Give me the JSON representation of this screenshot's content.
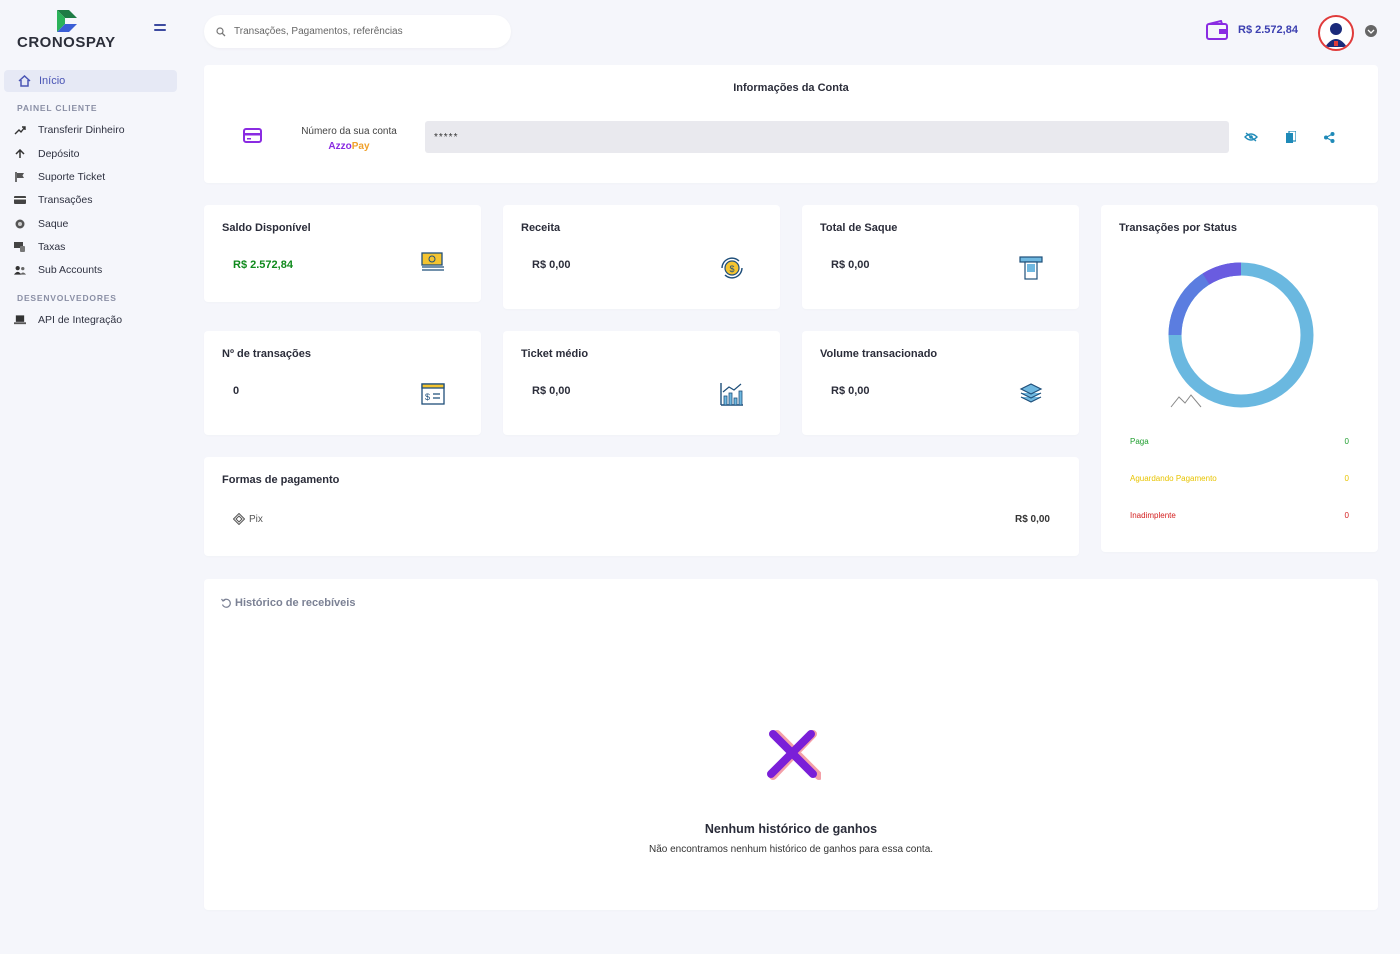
{
  "brand": {
    "name": "CRONOSPAY"
  },
  "sidebar": {
    "home_label": "Início",
    "section_client": "PAINEL CLIENTE",
    "items": [
      {
        "label": "Transferir Dinheiro",
        "icon": "transfer-icon"
      },
      {
        "label": "Depósito",
        "icon": "arrow-up-icon"
      },
      {
        "label": "Suporte Ticket",
        "icon": "flag-icon"
      },
      {
        "label": "Transações",
        "icon": "card-icon"
      },
      {
        "label": "Saque",
        "icon": "coin-icon"
      },
      {
        "label": "Taxas",
        "icon": "devices-icon"
      },
      {
        "label": "Sub Accounts",
        "icon": "users-icon"
      }
    ],
    "section_dev": "DESENVOLVEDORES",
    "dev_items": [
      {
        "label": "API de Integração",
        "icon": "laptop-icon"
      }
    ]
  },
  "header": {
    "search_placeholder": "Transações, Pagamentos, referências",
    "balance": "R$ 2.572,84"
  },
  "account": {
    "title": "Informações da Conta",
    "label": "Número da sua conta",
    "brand_a": "Azzo",
    "brand_b": "Pay",
    "masked_value": "*****"
  },
  "stats": {
    "saldo": {
      "title": "Saldo Disponível",
      "value": "R$ 2.572,84"
    },
    "receita": {
      "title": "Receita",
      "value": "R$ 0,00"
    },
    "saque": {
      "title": "Total de Saque",
      "value": "R$ 0,00"
    },
    "transacoes": {
      "title": "Nº de transações",
      "value": "0"
    },
    "ticket": {
      "title": "Ticket médio",
      "value": "R$ 0,00"
    },
    "volume": {
      "title": "Volume transacionado",
      "value": "R$ 0,00"
    }
  },
  "status_card": {
    "title": "Transações por Status",
    "rows": [
      {
        "label": "Paga",
        "value": "0",
        "color": "#1e9e2e"
      },
      {
        "label": "Aguardando Pagamento",
        "value": "0",
        "color": "#e8c400"
      },
      {
        "label": "Inadimplente",
        "value": "0",
        "color": "#d42020"
      }
    ]
  },
  "payments": {
    "title": "Formas de pagamento",
    "method": "Pix",
    "value": "R$ 0,00"
  },
  "history": {
    "title": "Histórico de recebíveis",
    "empty_title": "Nenhum histórico de ganhos",
    "empty_sub": "Não encontramos nenhum histórico de ganhos para essa conta."
  },
  "colors": {
    "accent": "#4a55b5",
    "positive": "#0f8a1c",
    "purple": "#8a2be2"
  }
}
